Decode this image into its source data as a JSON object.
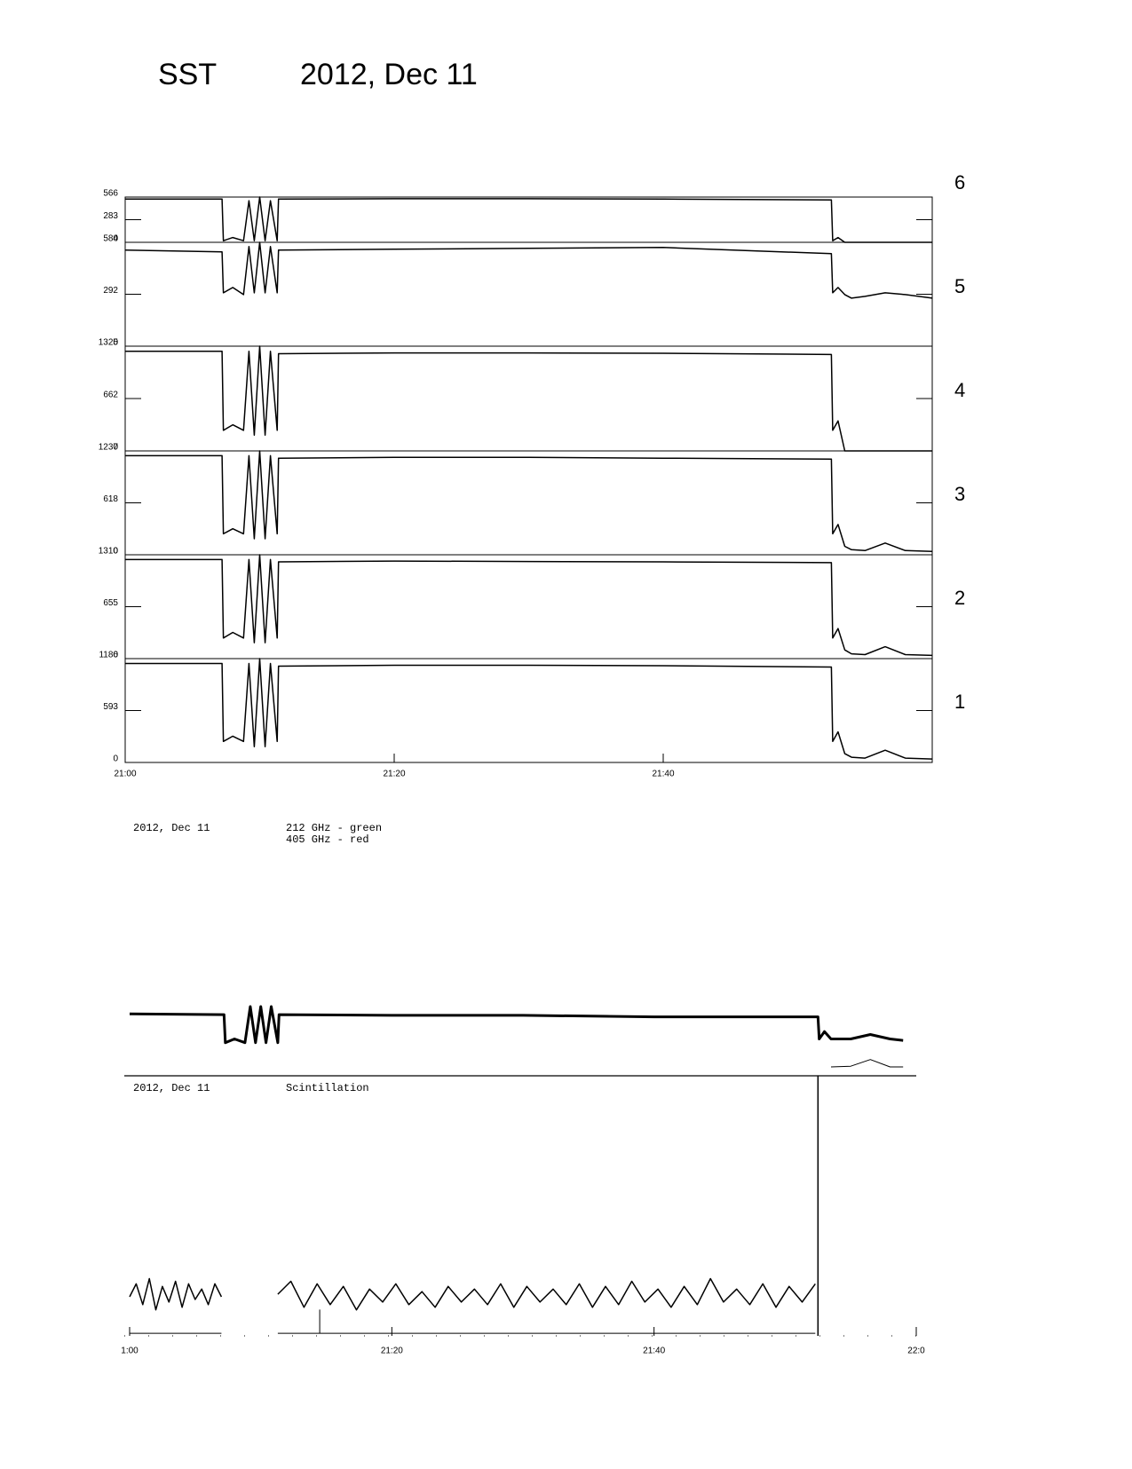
{
  "header": {
    "instrument": "SST",
    "date": "2012, Dec 11"
  },
  "chart_data": [
    {
      "type": "line",
      "annotations": [
        "2012, Dec 11",
        "212 GHz - green",
        "405 GHz - red"
      ],
      "xlim": [
        0,
        60
      ],
      "xticks": [
        {
          "value": 0,
          "label": "21:00"
        },
        {
          "value": 20,
          "label": "21:20"
        },
        {
          "value": 40,
          "label": "21:40"
        }
      ],
      "x": [
        0,
        7.2,
        7.3,
        8.0,
        8.8,
        9.2,
        9.6,
        10.0,
        10.4,
        10.8,
        11.3,
        11.4,
        20,
        30,
        40,
        52.5,
        52.6,
        53.0,
        53.5,
        54,
        55,
        56.5,
        58,
        60
      ],
      "panels": [
        {
          "label": "6",
          "ylim": [
            0,
            566
          ],
          "yticks": [
            0,
            283,
            566
          ],
          "color": "#000000",
          "values": [
            540,
            540,
            20,
            60,
            20,
            520,
            20,
            566,
            20,
            520,
            20,
            540,
            545,
            545,
            540,
            530,
            20,
            60,
            0,
            0,
            0,
            0,
            0,
            0
          ]
        },
        {
          "label": "5",
          "ylim": [
            0,
            584
          ],
          "yticks": [
            0,
            292,
            584
          ],
          "color": "#000000",
          "values": [
            540,
            530,
            300,
            330,
            290,
            560,
            300,
            584,
            300,
            560,
            300,
            540,
            545,
            550,
            555,
            520,
            300,
            330,
            290,
            270,
            280,
            300,
            290,
            270
          ]
        },
        {
          "label": "4",
          "ylim": [
            0,
            1325
          ],
          "yticks": [
            0,
            662,
            1325
          ],
          "color": "#000000",
          "values": [
            1260,
            1260,
            260,
            330,
            260,
            1260,
            200,
            1325,
            200,
            1260,
            260,
            1230,
            1240,
            1240,
            1235,
            1220,
            260,
            380,
            0,
            0,
            0,
            0,
            0,
            0
          ]
        },
        {
          "label": "3",
          "ylim": [
            0,
            1237
          ],
          "yticks": [
            0,
            618,
            1237
          ],
          "color": "#000000",
          "values": [
            1180,
            1180,
            250,
            310,
            250,
            1180,
            190,
            1237,
            190,
            1180,
            250,
            1150,
            1160,
            1160,
            1150,
            1140,
            250,
            360,
            100,
            60,
            50,
            140,
            50,
            40
          ]
        },
        {
          "label": "2",
          "ylim": [
            0,
            1310
          ],
          "yticks": [
            0,
            655,
            1310
          ],
          "color": "#000000",
          "values": [
            1250,
            1250,
            260,
            330,
            260,
            1250,
            200,
            1310,
            200,
            1250,
            260,
            1220,
            1230,
            1225,
            1220,
            1210,
            260,
            380,
            110,
            60,
            50,
            150,
            50,
            40
          ]
        },
        {
          "label": "1",
          "ylim": [
            0,
            1186
          ],
          "yticks": [
            0,
            593,
            1186
          ],
          "color": "#000000",
          "values": [
            1130,
            1130,
            240,
            300,
            240,
            1130,
            180,
            1186,
            180,
            1130,
            240,
            1100,
            1110,
            1110,
            1105,
            1090,
            240,
            350,
            100,
            60,
            50,
            140,
            50,
            40
          ]
        }
      ]
    },
    {
      "type": "line",
      "annotations": [
        "2012, Dec 11",
        "Scintillation"
      ],
      "xlim": [
        0,
        60
      ],
      "xticks": [
        {
          "value": 0,
          "label": "1:00"
        },
        {
          "value": 20,
          "label": "21:20"
        },
        {
          "value": 40,
          "label": "21:40"
        },
        {
          "value": 60,
          "label": "22:0"
        }
      ],
      "panels": [
        {
          "ylim": [
            0,
            1
          ],
          "series": [
            {
              "color": "#000000",
              "width": 3,
              "x": [
                0,
                7.2,
                7.3,
                8.0,
                8.8,
                9.2,
                9.6,
                10.0,
                10.4,
                10.8,
                11.3,
                11.4,
                20,
                30,
                40,
                52.5,
                52.6,
                53.0,
                53.5,
                55,
                56.5,
                58,
                59
              ],
              "values": [
                0.84,
                0.83,
                0.45,
                0.5,
                0.45,
                0.94,
                0.45,
                0.94,
                0.45,
                0.94,
                0.45,
                0.83,
                0.82,
                0.82,
                0.8,
                0.8,
                0.5,
                0.6,
                0.5,
                0.5,
                0.56,
                0.5,
                0.48
              ]
            },
            {
              "color": "#000000",
              "width": 1,
              "x": [
                53.5,
                55,
                56.5,
                58,
                59
              ],
              "values": [
                0.12,
                0.13,
                0.22,
                0.12,
                0.12
              ]
            }
          ]
        },
        {
          "ylim": [
            0,
            1
          ],
          "series": [
            {
              "color": "#000000",
              "width": 1.5,
              "x": [
                0,
                0.5,
                1,
                1.5,
                2,
                2.5,
                3,
                3.5,
                4,
                4.5,
                5,
                5.5,
                6,
                6.5,
                7,
                7.5,
                11.3,
                12.3,
                13.3,
                14.3,
                15.3,
                16.3,
                17.3,
                18.3,
                19.3,
                20.3,
                21.3,
                22.3,
                23.3,
                24.3,
                25.3,
                26.3,
                27.3,
                28.3,
                29.3,
                30.3,
                31.3,
                32.3,
                33.3,
                34.3,
                35.3,
                36.3,
                37.3,
                38.3,
                39.3,
                40.3,
                41.3,
                42.3,
                43.3,
                44.3,
                45.3,
                46.3,
                47.3,
                48.3,
                49.3,
                50.3,
                51.3,
                52.3
              ],
              "values": [
                0.15,
                0.2,
                0.12,
                0.22,
                0.1,
                0.19,
                0.13,
                0.21,
                0.11,
                0.2,
                0.14,
                0.18,
                0.12,
                0.2,
                0.15,
                null,
                0.16,
                0.21,
                0.11,
                0.2,
                0.12,
                0.19,
                0.1,
                0.18,
                0.13,
                0.2,
                0.12,
                0.17,
                0.11,
                0.19,
                0.13,
                0.18,
                0.12,
                0.2,
                0.11,
                0.19,
                0.13,
                0.18,
                0.12,
                0.2,
                0.11,
                0.19,
                0.12,
                0.21,
                0.13,
                0.18,
                0.11,
                0.19,
                0.12,
                0.22,
                0.13,
                0.18,
                0.12,
                0.2,
                0.11,
                0.19,
                0.13,
                0.2
              ]
            },
            {
              "color": "#000000",
              "width": 1,
              "x": [
                0,
                7,
                7.5,
                11.3,
                14.5,
                14.5,
                14.5,
                52.3
              ],
              "values": [
                0.01,
                0.01,
                null,
                0.01,
                0.01,
                0.1,
                0.01,
                0.01
              ]
            },
            {
              "color": "#000000",
              "width": 1.5,
              "x": [
                52.5,
                52.5
              ],
              "values": [
                0,
                1
              ]
            }
          ]
        }
      ]
    }
  ]
}
